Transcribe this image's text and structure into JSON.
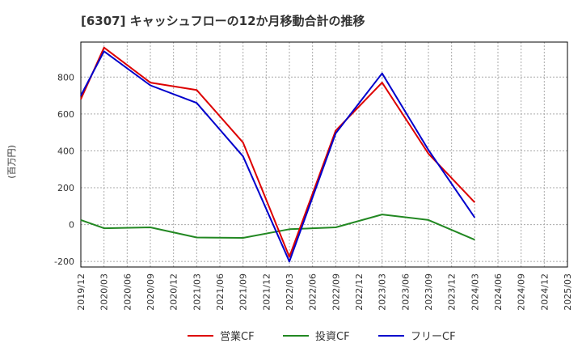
{
  "chart_data": {
    "type": "line",
    "title": "[6307]  キャッシュフローの12か月移動合計の推移",
    "ylabel": "(百万円)",
    "xlabel": "",
    "ylim": [
      -230,
      990
    ],
    "yticks": [
      -200,
      0,
      200,
      400,
      600,
      800
    ],
    "categories": [
      "2019/12",
      "2020/03",
      "2020/06",
      "2020/09",
      "2020/12",
      "2021/03",
      "2021/06",
      "2021/09",
      "2021/12",
      "2022/03",
      "2022/06",
      "2022/09",
      "2022/12",
      "2023/03",
      "2023/06",
      "2023/09",
      "2023/12",
      "2024/03",
      "2024/06",
      "2024/09",
      "2024/12",
      "2025/03"
    ],
    "series": [
      {
        "name": "営業CF",
        "color": "#dd0000",
        "values": [
          680,
          960,
          null,
          770,
          null,
          730,
          null,
          445,
          null,
          -175,
          null,
          510,
          null,
          770,
          null,
          385,
          null,
          120,
          null,
          null,
          null,
          null
        ]
      },
      {
        "name": "投資CF",
        "color": "#228822",
        "values": [
          25,
          -20,
          null,
          -15,
          null,
          -70,
          null,
          -72,
          null,
          -25,
          null,
          -15,
          null,
          55,
          null,
          25,
          null,
          -82,
          null,
          null,
          null,
          null
        ]
      },
      {
        "name": "フリーCF",
        "color": "#0000cc",
        "values": [
          700,
          940,
          null,
          755,
          null,
          660,
          null,
          370,
          null,
          -200,
          null,
          495,
          null,
          820,
          null,
          405,
          null,
          38,
          null,
          null,
          null,
          null
        ]
      }
    ],
    "grid": true,
    "legend_position": "bottom-center"
  }
}
